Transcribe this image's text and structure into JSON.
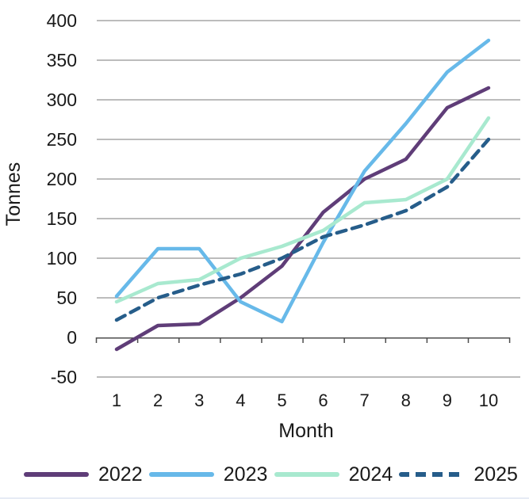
{
  "chart": {
    "y_axis_title": "Tonnes",
    "x_axis_title": "Month"
  },
  "chart_data": {
    "type": "line",
    "title": "",
    "xlabel": "Month",
    "ylabel": "Tonnes",
    "x": [
      1,
      2,
      3,
      4,
      5,
      6,
      7,
      8,
      9,
      10
    ],
    "ylim": [
      -50,
      400
    ],
    "y_ticks": [
      400,
      350,
      300,
      250,
      200,
      150,
      100,
      50,
      0,
      -50
    ],
    "grid": "horizontal",
    "legend_position": "bottom",
    "series": [
      {
        "name": "2022",
        "color": "#5f3d78",
        "style": "solid",
        "values": [
          -15,
          15,
          17,
          50,
          90,
          158,
          200,
          225,
          290,
          315
        ]
      },
      {
        "name": "2023",
        "color": "#67b9e9",
        "style": "solid",
        "values": [
          52,
          112,
          112,
          45,
          20,
          120,
          210,
          270,
          335,
          375
        ]
      },
      {
        "name": "2024",
        "color": "#a8e9cf",
        "style": "solid",
        "values": [
          45,
          68,
          73,
          100,
          115,
          135,
          170,
          174,
          200,
          277
        ]
      },
      {
        "name": "2025",
        "color": "#265d8a",
        "style": "dashed",
        "values": [
          22,
          50,
          66,
          80,
          100,
          127,
          142,
          160,
          190,
          250
        ]
      }
    ],
    "colors": {
      "gridline": "#a6a6a6",
      "axis": "#4d4d4d",
      "text": "#1a1a1a"
    }
  }
}
